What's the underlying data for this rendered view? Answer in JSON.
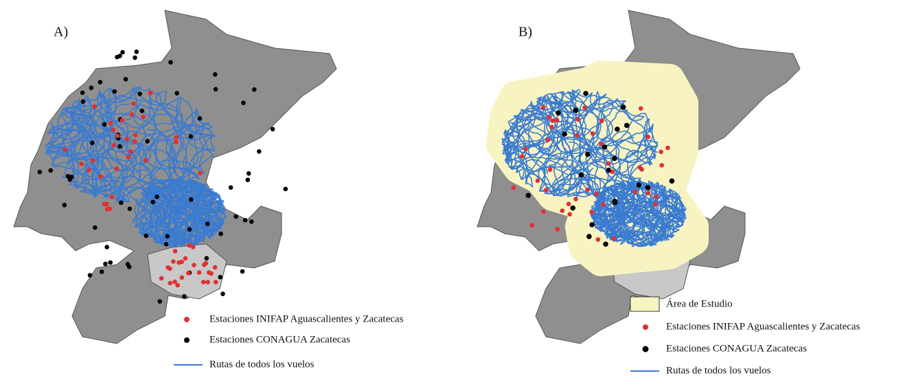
{
  "panels": [
    {
      "label": "A)",
      "legend": [
        {
          "text": "Estaciones INIFAP Aguascalientes y Zacatecas"
        },
        {
          "text": "Estaciones CONAGUA Zacatecas"
        },
        {
          "text": "Rutas de todos los vuelos"
        }
      ]
    },
    {
      "label": "B)",
      "legend": [
        {
          "text": "Área de Estudio"
        },
        {
          "text": "Estaciones INIFAP Aguascalientes y Zacatecas"
        },
        {
          "text": "Estaciones CONAGUA Zacatecas"
        },
        {
          "text": "Rutas de todos los vuelos"
        }
      ]
    }
  ]
}
